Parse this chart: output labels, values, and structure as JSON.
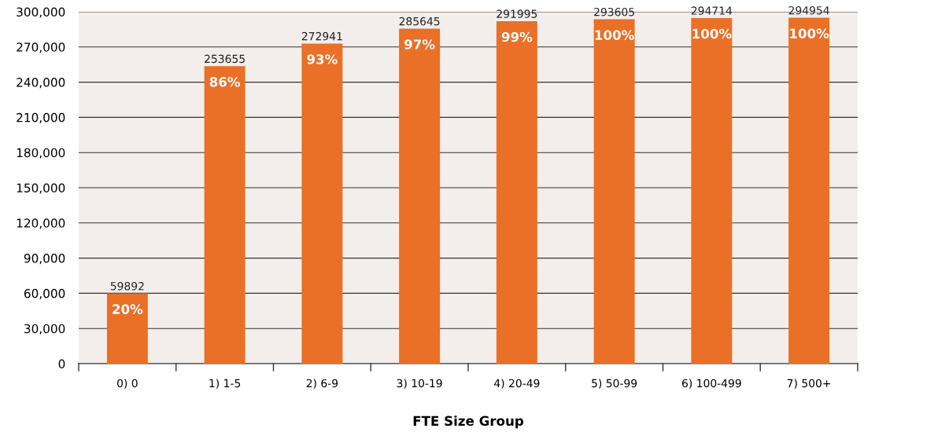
{
  "chart_data": {
    "type": "bar",
    "xlabel": "FTE Size Group",
    "categories": [
      "0) 0",
      "1) 1-5",
      "2) 6-9",
      "3) 10-19",
      "4) 20-49",
      "5) 50-99",
      "6) 100-499",
      "7) 500+"
    ],
    "values": [
      59892,
      253655,
      272941,
      285645,
      291995,
      293605,
      294714,
      294954
    ],
    "color": "#e97026",
    "data_labels": true,
    "annotations": [
      {
        "text": "20%",
        "x": "0) 0",
        "y": 59892
      },
      {
        "text": "86%",
        "x": "1) 1-5",
        "y": 253655
      },
      {
        "text": "93%",
        "x": "2) 6-9",
        "y": 272941
      },
      {
        "text": "97%",
        "x": "3) 10-19",
        "y": 285645
      },
      {
        "text": "99%",
        "x": "4) 20-49",
        "y": 291995
      },
      {
        "text": "100%",
        "x": "5) 50-99",
        "y": 293605
      },
      {
        "text": "100%",
        "x": "6) 100-499",
        "y": 294714
      },
      {
        "text": "100%",
        "x": "7) 500+",
        "y": 294954
      }
    ],
    "ylim": [
      0,
      300000
    ],
    "yticks": [
      {
        "value": 0,
        "label": "0"
      },
      {
        "value": 30000,
        "label": "30,000"
      },
      {
        "value": 60000,
        "label": "60,000"
      },
      {
        "value": 90000,
        "label": "90,000"
      },
      {
        "value": 120000,
        "label": "120,000"
      },
      {
        "value": 150000,
        "label": "150,000"
      },
      {
        "value": 180000,
        "label": "180,000"
      },
      {
        "value": 210000,
        "label": "210,000"
      },
      {
        "value": 240000,
        "label": "240,000"
      },
      {
        "value": 270000,
        "label": "270,000"
      },
      {
        "value": 300000,
        "label": "300,000"
      }
    ],
    "grid": "y"
  }
}
